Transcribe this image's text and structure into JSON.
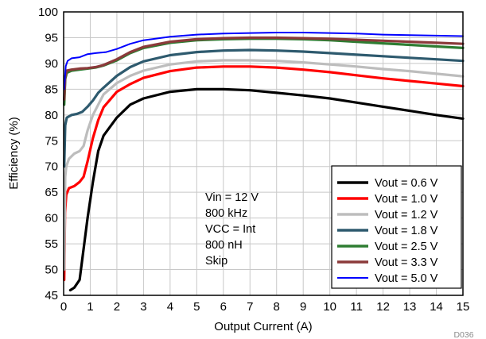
{
  "chart_data": {
    "type": "line",
    "title": "",
    "xlabel": "Output Current (A)",
    "ylabel": "Efficiency (%)",
    "xlim": [
      0,
      15
    ],
    "ylim": [
      45,
      100
    ],
    "xticks": [
      0,
      1,
      2,
      3,
      4,
      5,
      6,
      7,
      8,
      9,
      10,
      11,
      12,
      13,
      14,
      15
    ],
    "yticks": [
      45,
      50,
      55,
      60,
      65,
      70,
      75,
      80,
      85,
      90,
      95,
      100
    ],
    "grid": true,
    "legend_position": "bottom-right",
    "annotation": [
      "Vin = 12 V",
      "800 kHz",
      "VCC = Int",
      "800 nH",
      "Skip"
    ],
    "figure_code": "D036",
    "series": [
      {
        "name": "Vout = 0.6 V",
        "color": "#000000",
        "points": [
          [
            0.25,
            46
          ],
          [
            0.4,
            46.5
          ],
          [
            0.6,
            48
          ],
          [
            0.75,
            54
          ],
          [
            0.9,
            60
          ],
          [
            1.1,
            67
          ],
          [
            1.3,
            73
          ],
          [
            1.5,
            76
          ],
          [
            2,
            79.5
          ],
          [
            2.5,
            82
          ],
          [
            3,
            83.2
          ],
          [
            4,
            84.5
          ],
          [
            5,
            85
          ],
          [
            6,
            85
          ],
          [
            7,
            84.8
          ],
          [
            8,
            84.3
          ],
          [
            9,
            83.8
          ],
          [
            10,
            83.2
          ],
          [
            11,
            82.4
          ],
          [
            12,
            81.6
          ],
          [
            13,
            80.8
          ],
          [
            14,
            80
          ],
          [
            15,
            79.3
          ]
        ]
      },
      {
        "name": "Vout = 1.0 V",
        "color": "#ff0000",
        "points": [
          [
            0.02,
            48
          ],
          [
            0.05,
            61
          ],
          [
            0.1,
            64.5
          ],
          [
            0.2,
            65.8
          ],
          [
            0.4,
            66.2
          ],
          [
            0.6,
            67
          ],
          [
            0.75,
            68
          ],
          [
            0.9,
            71
          ],
          [
            1.1,
            75.5
          ],
          [
            1.3,
            79
          ],
          [
            1.5,
            81.5
          ],
          [
            2,
            84.5
          ],
          [
            2.5,
            86
          ],
          [
            3,
            87.2
          ],
          [
            4,
            88.5
          ],
          [
            5,
            89.2
          ],
          [
            6,
            89.4
          ],
          [
            7,
            89.4
          ],
          [
            8,
            89.2
          ],
          [
            9,
            88.8
          ],
          [
            10,
            88.3
          ],
          [
            11,
            87.7
          ],
          [
            12,
            87.1
          ],
          [
            13,
            86.6
          ],
          [
            14,
            86.1
          ],
          [
            15,
            85.6
          ]
        ]
      },
      {
        "name": "Vout = 1.2 V",
        "color": "#bdbdbd",
        "points": [
          [
            0.02,
            50
          ],
          [
            0.06,
            68
          ],
          [
            0.1,
            70
          ],
          [
            0.2,
            71.5
          ],
          [
            0.4,
            72.5
          ],
          [
            0.6,
            73
          ],
          [
            0.75,
            74
          ],
          [
            0.9,
            77
          ],
          [
            1.1,
            80
          ],
          [
            1.3,
            82
          ],
          [
            1.5,
            84
          ],
          [
            2,
            86.2
          ],
          [
            2.5,
            87.6
          ],
          [
            3,
            88.6
          ],
          [
            4,
            89.8
          ],
          [
            5,
            90.4
          ],
          [
            6,
            90.6
          ],
          [
            7,
            90.6
          ],
          [
            8,
            90.5
          ],
          [
            9,
            90.2
          ],
          [
            10,
            89.8
          ],
          [
            11,
            89.4
          ],
          [
            12,
            88.9
          ],
          [
            13,
            88.5
          ],
          [
            14,
            88
          ],
          [
            15,
            87.5
          ]
        ]
      },
      {
        "name": "Vout = 1.8 V",
        "color": "#2e5a6e",
        "points": [
          [
            0.02,
            70
          ],
          [
            0.06,
            78
          ],
          [
            0.12,
            79.5
          ],
          [
            0.3,
            80
          ],
          [
            0.5,
            80.2
          ],
          [
            0.7,
            80.6
          ],
          [
            0.9,
            81.6
          ],
          [
            1.1,
            82.8
          ],
          [
            1.3,
            84.3
          ],
          [
            1.5,
            85.3
          ],
          [
            2,
            87.6
          ],
          [
            2.5,
            89.3
          ],
          [
            3,
            90.4
          ],
          [
            4,
            91.6
          ],
          [
            5,
            92.2
          ],
          [
            6,
            92.5
          ],
          [
            7,
            92.6
          ],
          [
            8,
            92.5
          ],
          [
            9,
            92.3
          ],
          [
            10,
            92
          ],
          [
            11,
            91.7
          ],
          [
            12,
            91.4
          ],
          [
            13,
            91.1
          ],
          [
            14,
            90.8
          ],
          [
            15,
            90.5
          ]
        ]
      },
      {
        "name": "Vout = 2.5 V",
        "color": "#2e7d32",
        "points": [
          [
            0.02,
            82
          ],
          [
            0.06,
            87
          ],
          [
            0.12,
            88.2
          ],
          [
            0.3,
            88.6
          ],
          [
            0.6,
            88.8
          ],
          [
            0.9,
            89
          ],
          [
            1.2,
            89.2
          ],
          [
            1.5,
            89.6
          ],
          [
            2,
            90.6
          ],
          [
            2.5,
            92
          ],
          [
            3,
            93
          ],
          [
            4,
            94
          ],
          [
            5,
            94.5
          ],
          [
            6,
            94.7
          ],
          [
            7,
            94.8
          ],
          [
            8,
            94.8
          ],
          [
            9,
            94.7
          ],
          [
            10,
            94.5
          ],
          [
            11,
            94.2
          ],
          [
            12,
            93.9
          ],
          [
            13,
            93.6
          ],
          [
            14,
            93.3
          ],
          [
            15,
            93
          ]
        ]
      },
      {
        "name": "Vout = 3.3 V",
        "color": "#8b3a3a",
        "points": [
          [
            0.02,
            83
          ],
          [
            0.06,
            87.5
          ],
          [
            0.12,
            88.6
          ],
          [
            0.3,
            88.8
          ],
          [
            0.6,
            89
          ],
          [
            0.9,
            89.1
          ],
          [
            1.2,
            89.3
          ],
          [
            1.5,
            89.7
          ],
          [
            2,
            90.8
          ],
          [
            2.5,
            92.2
          ],
          [
            3,
            93.2
          ],
          [
            4,
            94.2
          ],
          [
            5,
            94.7
          ],
          [
            6,
            94.9
          ],
          [
            7,
            95
          ],
          [
            8,
            95
          ],
          [
            9,
            94.9
          ],
          [
            10,
            94.8
          ],
          [
            11,
            94.6
          ],
          [
            12,
            94.4
          ],
          [
            13,
            94.2
          ],
          [
            14,
            94
          ],
          [
            15,
            93.8
          ]
        ]
      },
      {
        "name": "Vout = 5.0 V",
        "color": "#0000ff",
        "points": [
          [
            0.02,
            85
          ],
          [
            0.08,
            89.5
          ],
          [
            0.15,
            90.5
          ],
          [
            0.3,
            91
          ],
          [
            0.6,
            91.2
          ],
          [
            0.9,
            91.8
          ],
          [
            1.2,
            92
          ],
          [
            1.6,
            92.2
          ],
          [
            2,
            92.8
          ],
          [
            2.5,
            93.8
          ],
          [
            3,
            94.5
          ],
          [
            4,
            95.2
          ],
          [
            5,
            95.6
          ],
          [
            6,
            95.8
          ],
          [
            7,
            95.9
          ],
          [
            8,
            96
          ],
          [
            9,
            96
          ],
          [
            10,
            95.9
          ],
          [
            11,
            95.8
          ],
          [
            12,
            95.6
          ],
          [
            13,
            95.5
          ],
          [
            14,
            95.4
          ],
          [
            15,
            95.3
          ]
        ]
      }
    ]
  }
}
